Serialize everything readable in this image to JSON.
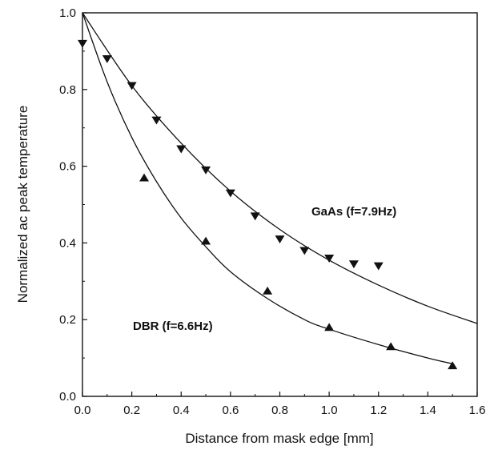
{
  "chart_data": {
    "type": "scatter",
    "xlabel": "Distance  from mask edge [mm]",
    "ylabel": "Normalized ac peak temperature",
    "xlim": [
      0.0,
      1.6
    ],
    "ylim": [
      0.0,
      1.0
    ],
    "xticks": [
      "0.0",
      "0.2",
      "0.4",
      "0.6",
      "0.8",
      "1.0",
      "1.2",
      "1.4",
      "1.6"
    ],
    "yticks": [
      "0.0",
      "0.2",
      "0.4",
      "0.6",
      "0.8",
      "1.0"
    ],
    "grid": false,
    "series": [
      {
        "name": "GaAs  (f=7.9Hz)",
        "marker": "triangle-down",
        "x": [
          0.0,
          0.1,
          0.2,
          0.3,
          0.4,
          0.5,
          0.6,
          0.7,
          0.8,
          0.9,
          1.0,
          1.1,
          1.2
        ],
        "y": [
          0.92,
          0.88,
          0.81,
          0.72,
          0.645,
          0.59,
          0.53,
          0.47,
          0.41,
          0.38,
          0.36,
          0.345,
          0.34
        ],
        "fit": {
          "x": [
            0.0,
            0.2,
            0.4,
            0.6,
            0.8,
            1.0,
            1.2,
            1.4,
            1.6
          ],
          "y": [
            1.0,
            0.81,
            0.66,
            0.535,
            0.435,
            0.355,
            0.29,
            0.235,
            0.19
          ]
        }
      },
      {
        "name": "DBR  (f=6.6Hz)",
        "marker": "triangle-up",
        "x": [
          0.25,
          0.5,
          0.75,
          1.0,
          1.25,
          1.5
        ],
        "y": [
          0.57,
          0.405,
          0.275,
          0.18,
          0.13,
          0.08
        ],
        "fit": {
          "x": [
            0.0,
            0.1,
            0.2,
            0.3,
            0.4,
            0.5,
            0.6,
            0.75,
            0.9,
            1.0,
            1.2,
            1.4,
            1.5
          ],
          "y": [
            1.0,
            0.82,
            0.675,
            0.56,
            0.465,
            0.39,
            0.325,
            0.255,
            0.2,
            0.175,
            0.135,
            0.1,
            0.085
          ]
        }
      }
    ]
  }
}
